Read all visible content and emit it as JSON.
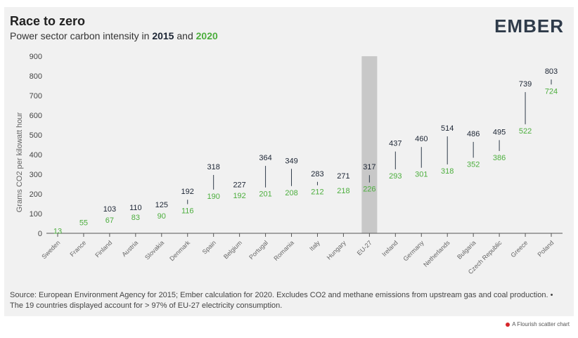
{
  "header": {
    "title": "Race to zero",
    "subtitle_prefix": "Power sector carbon intensity in ",
    "subtitle_year1": "2015",
    "subtitle_and": " and ",
    "subtitle_year2": "2020",
    "logo": "EMBER"
  },
  "footer": {
    "source": "Source: European Environment Agency for 2015; Ember calculation for 2020. Excludes CO2 and methane emissions from upstream gas and coal production. • The 19 countries displayed account for > 97% of EU-27 electricity consumption.",
    "credit": "A Flourish scatter chart"
  },
  "colors": {
    "y2015": "#1b2433",
    "y2020": "#4cae3d",
    "highlight": "#c8c8c8",
    "connector": "#2f3b4a"
  },
  "chart_data": {
    "type": "scatter",
    "title": "Race to zero",
    "subtitle": "Power sector carbon intensity in 2015 and 2020",
    "xlabel": "",
    "ylabel": "Grams CO2 per kilowatt hour",
    "ylim": [
      0,
      900
    ],
    "yticks": [
      0,
      100,
      200,
      300,
      400,
      500,
      600,
      700,
      800,
      900
    ],
    "highlight_category": "EU-27",
    "categories": [
      "Sweden",
      "France",
      "Finland",
      "Austria",
      "Slovakia",
      "Denmark",
      "Spain",
      "Belgium",
      "Portugal",
      "Romania",
      "Italy",
      "Hungary",
      "EU-27",
      "Ireland",
      "Germany",
      "Netherlands",
      "Bulgaria",
      "Czech Republic",
      "Greece",
      "Poland"
    ],
    "series": [
      {
        "name": "2015",
        "values": [
          null,
          null,
          103,
          110,
          125,
          192,
          318,
          227,
          364,
          349,
          283,
          271,
          317,
          437,
          460,
          514,
          486,
          495,
          739,
          803
        ]
      },
      {
        "name": "2020",
        "values": [
          13,
          55,
          67,
          83,
          90,
          116,
          190,
          192,
          201,
          208,
          212,
          218,
          226,
          293,
          301,
          318,
          352,
          386,
          522,
          724
        ]
      }
    ]
  }
}
